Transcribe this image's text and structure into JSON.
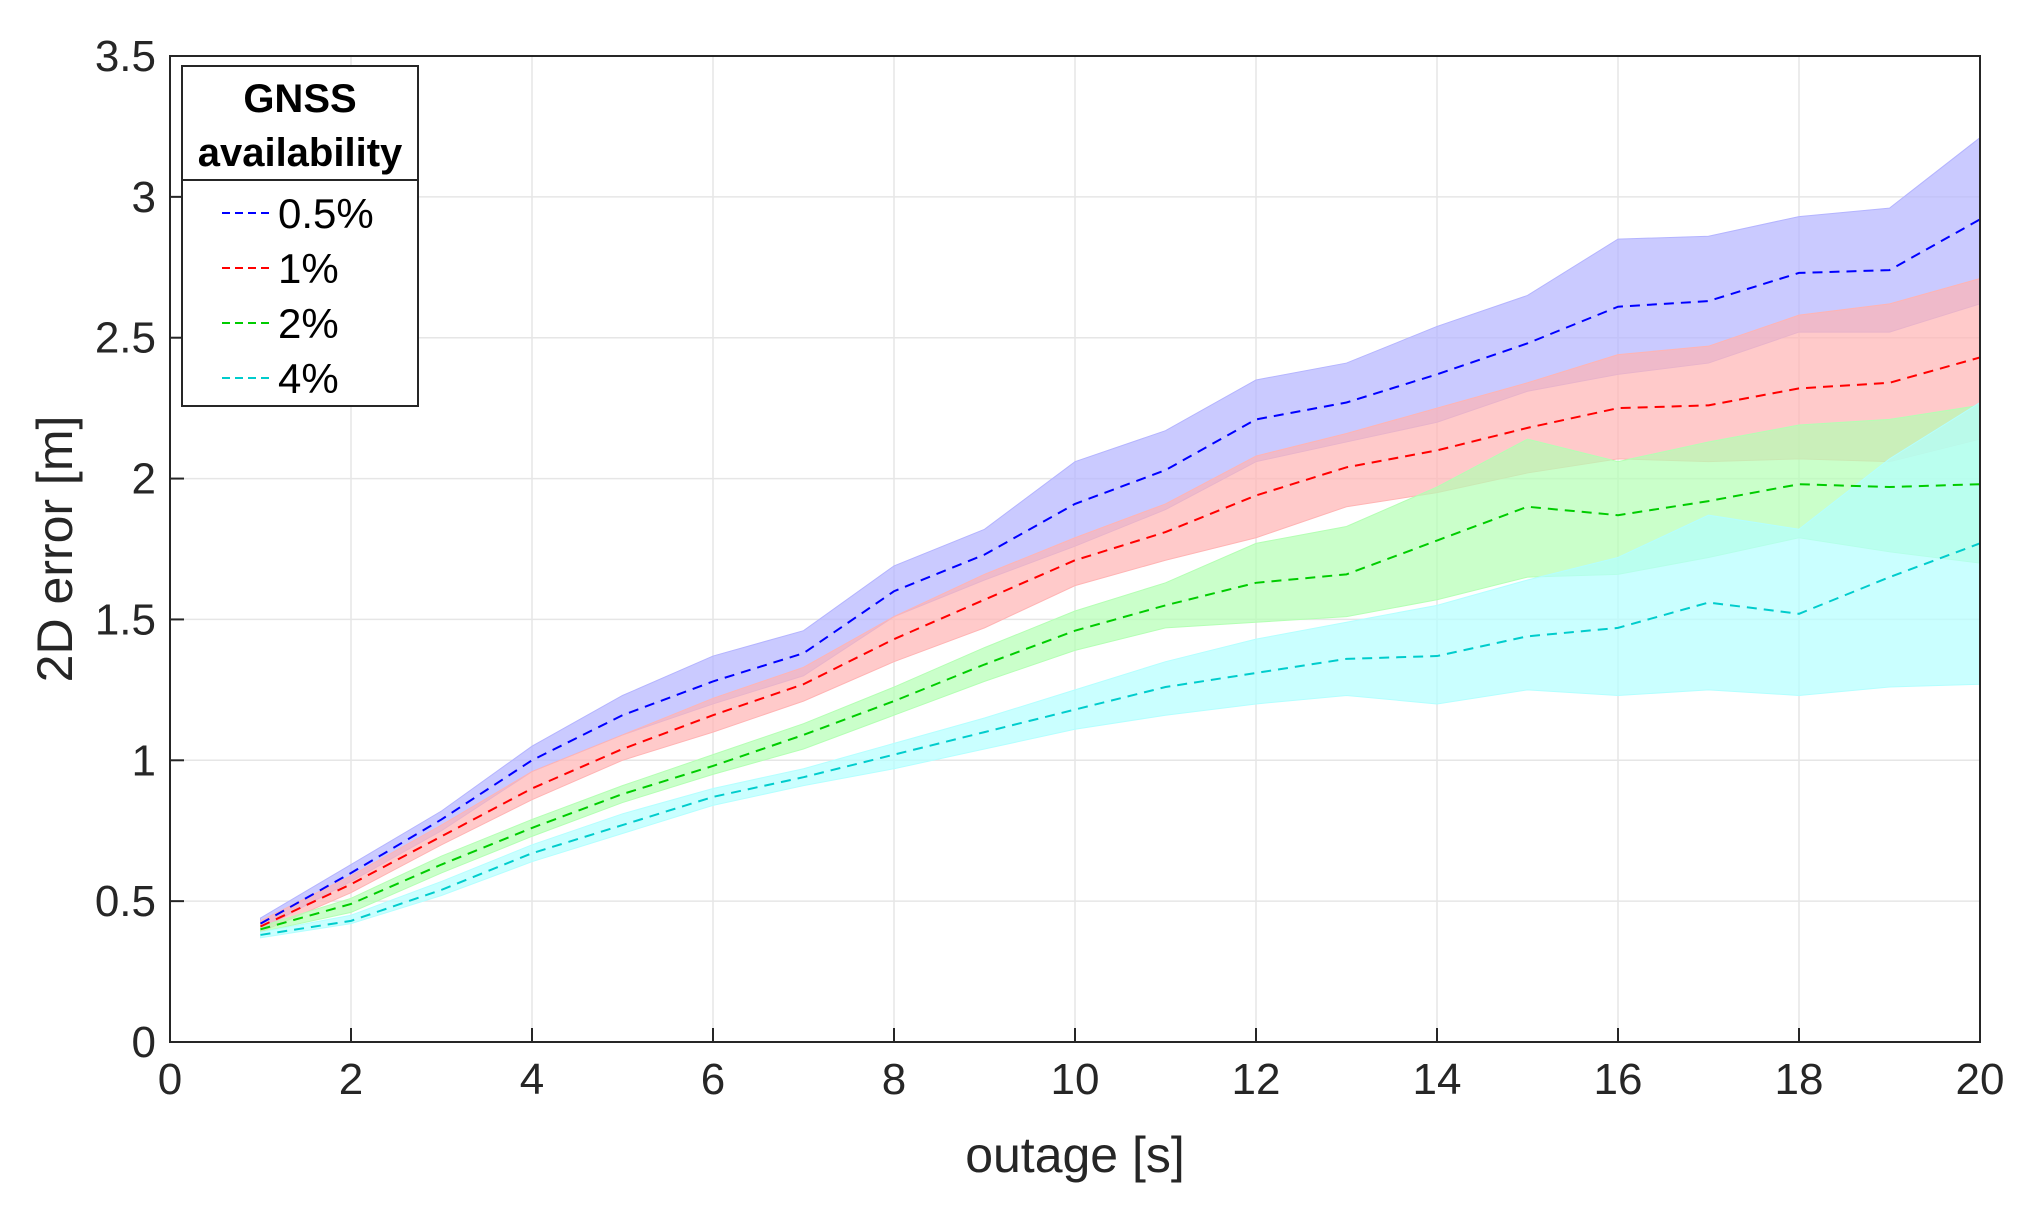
{
  "chart_data": {
    "type": "line",
    "title": "",
    "xlabel": "outage [s]",
    "ylabel": "2D error [m]",
    "xlim": [
      0,
      20
    ],
    "ylim": [
      0,
      3.5
    ],
    "xticks": [
      0,
      2,
      4,
      6,
      8,
      10,
      12,
      14,
      16,
      18,
      20
    ],
    "xtick_labels": [
      "0",
      "2",
      "4",
      "6",
      "8",
      "10",
      "12",
      "14",
      "16",
      "18",
      "20"
    ],
    "yticks": [
      0,
      0.5,
      1,
      1.5,
      2,
      2.5,
      3,
      3.5
    ],
    "ytick_labels": [
      "0",
      "0.5",
      "1",
      "1.5",
      "2",
      "2.5",
      "3",
      "3.5"
    ],
    "grid": true,
    "legend": {
      "title_lines": [
        "GNSS",
        "availability"
      ],
      "placement": "top-left"
    },
    "x": [
      1,
      2,
      3,
      4,
      5,
      6,
      7,
      8,
      9,
      10,
      11,
      12,
      13,
      14,
      15,
      16,
      17,
      18,
      19,
      20
    ],
    "series": [
      {
        "name": "0.5%",
        "color": "#0000ff",
        "band_fill": "#b4b4ff",
        "mean": [
          0.42,
          0.6,
          0.79,
          1.0,
          1.16,
          1.28,
          1.38,
          1.6,
          1.73,
          1.91,
          2.03,
          2.21,
          2.27,
          2.37,
          2.48,
          2.61,
          2.63,
          2.73,
          2.74,
          2.92
        ],
        "upper": [
          0.44,
          0.63,
          0.82,
          1.05,
          1.23,
          1.37,
          1.46,
          1.69,
          1.82,
          2.06,
          2.17,
          2.35,
          2.41,
          2.54,
          2.65,
          2.85,
          2.86,
          2.93,
          2.96,
          3.21
        ],
        "lower": [
          0.4,
          0.57,
          0.75,
          0.96,
          1.09,
          1.2,
          1.3,
          1.51,
          1.64,
          1.76,
          1.89,
          2.06,
          2.13,
          2.2,
          2.31,
          2.37,
          2.41,
          2.52,
          2.52,
          2.62
        ]
      },
      {
        "name": "1%",
        "color": "#ff0000",
        "band_fill": "#ffb4b4",
        "mean": [
          0.41,
          0.56,
          0.73,
          0.9,
          1.04,
          1.16,
          1.27,
          1.43,
          1.57,
          1.71,
          1.81,
          1.94,
          2.04,
          2.1,
          2.18,
          2.25,
          2.26,
          2.32,
          2.34,
          2.43
        ],
        "upper": [
          0.43,
          0.59,
          0.77,
          0.96,
          1.09,
          1.22,
          1.33,
          1.51,
          1.66,
          1.79,
          1.91,
          2.08,
          2.16,
          2.25,
          2.34,
          2.44,
          2.47,
          2.58,
          2.62,
          2.71
        ],
        "lower": [
          0.39,
          0.53,
          0.7,
          0.86,
          1.0,
          1.1,
          1.21,
          1.35,
          1.47,
          1.62,
          1.71,
          1.79,
          1.9,
          1.95,
          2.02,
          2.07,
          2.06,
          2.07,
          2.06,
          2.14
        ]
      },
      {
        "name": "2%",
        "color": "#00cc00",
        "band_fill": "#b4ffb4",
        "mean": [
          0.4,
          0.49,
          0.63,
          0.76,
          0.88,
          0.98,
          1.09,
          1.21,
          1.34,
          1.46,
          1.55,
          1.63,
          1.66,
          1.78,
          1.9,
          1.87,
          1.92,
          1.98,
          1.97,
          1.98
        ],
        "upper": [
          0.41,
          0.51,
          0.66,
          0.79,
          0.91,
          1.02,
          1.13,
          1.26,
          1.4,
          1.53,
          1.63,
          1.77,
          1.83,
          1.97,
          2.14,
          2.06,
          2.13,
          2.19,
          2.21,
          2.26
        ],
        "lower": [
          0.39,
          0.46,
          0.6,
          0.73,
          0.85,
          0.95,
          1.04,
          1.16,
          1.28,
          1.39,
          1.47,
          1.49,
          1.51,
          1.57,
          1.65,
          1.66,
          1.72,
          1.79,
          1.74,
          1.7
        ]
      },
      {
        "name": "4%",
        "color": "#00cccc",
        "band_fill": "#b4ffff",
        "mean": [
          0.38,
          0.43,
          0.54,
          0.67,
          0.77,
          0.87,
          0.94,
          1.02,
          1.1,
          1.18,
          1.26,
          1.31,
          1.36,
          1.37,
          1.44,
          1.47,
          1.56,
          1.52,
          1.65,
          1.77
        ],
        "upper": [
          0.39,
          0.45,
          0.57,
          0.7,
          0.81,
          0.9,
          0.97,
          1.06,
          1.15,
          1.25,
          1.35,
          1.43,
          1.49,
          1.55,
          1.64,
          1.72,
          1.87,
          1.82,
          2.07,
          2.27
        ],
        "lower": [
          0.37,
          0.42,
          0.52,
          0.64,
          0.74,
          0.84,
          0.91,
          0.97,
          1.04,
          1.11,
          1.16,
          1.2,
          1.23,
          1.2,
          1.25,
          1.23,
          1.25,
          1.23,
          1.26,
          1.27
        ]
      }
    ]
  }
}
